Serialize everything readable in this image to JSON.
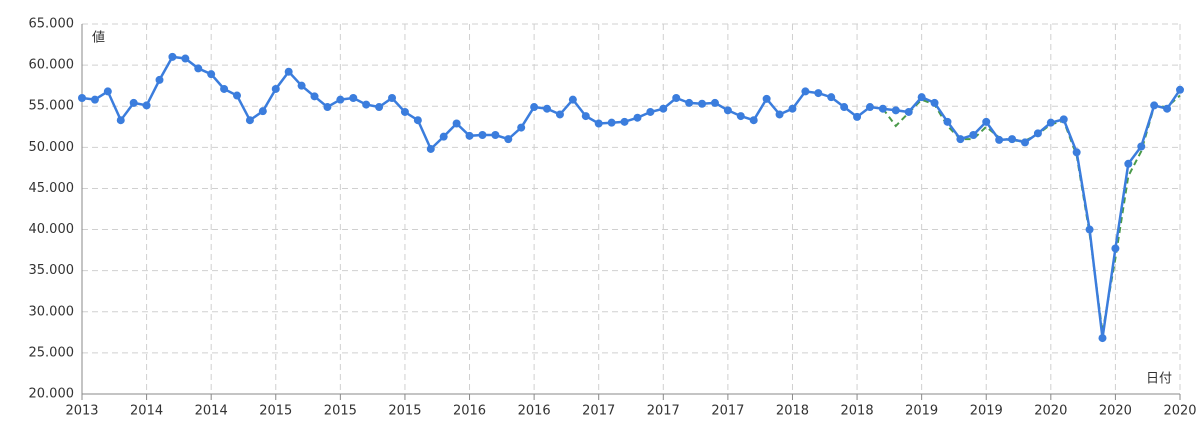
{
  "chart_data": {
    "type": "line",
    "y_axis_label": "値",
    "x_axis_label": "日付",
    "categories": [
      "2013",
      null,
      null,
      null,
      null,
      "2014",
      null,
      null,
      null,
      null,
      "2014",
      null,
      null,
      null,
      null,
      "2015",
      null,
      null,
      null,
      null,
      "2015",
      null,
      null,
      null,
      null,
      "2015",
      null,
      null,
      null,
      null,
      "2016",
      null,
      null,
      null,
      null,
      "2016",
      null,
      null,
      null,
      null,
      "2017",
      null,
      null,
      null,
      null,
      "2017",
      null,
      null,
      null,
      null,
      "2017",
      null,
      null,
      null,
      null,
      "2018",
      null,
      null,
      null,
      null,
      "2018",
      null,
      null,
      null,
      null,
      "2019",
      null,
      null,
      null,
      null,
      "2019",
      null,
      null,
      null,
      null,
      "2020",
      null,
      null,
      null,
      null,
      "2020",
      null,
      null,
      null,
      null,
      "2020"
    ],
    "series": [
      {
        "color": "#3b7ddd",
        "dashed": false,
        "markers": true,
        "values": [
          56.0,
          55.8,
          56.8,
          53.3,
          55.4,
          55.1,
          58.2,
          61.0,
          60.8,
          59.6,
          58.9,
          57.1,
          56.3,
          53.3,
          54.4,
          57.1,
          59.2,
          57.5,
          56.2,
          54.9,
          55.8,
          56.0,
          55.2,
          54.9,
          56.0,
          54.3,
          53.3,
          49.8,
          51.3,
          52.9,
          51.4,
          51.5,
          51.5,
          51.0,
          52.4,
          54.9,
          54.7,
          54.0,
          55.8,
          53.8,
          52.9,
          53.0,
          53.1,
          53.6,
          54.3,
          54.7,
          56.0,
          55.4,
          55.3,
          55.4,
          54.5,
          53.8,
          53.3,
          55.9,
          54.0,
          54.7,
          56.8,
          56.6,
          56.1,
          54.9,
          53.7,
          54.9,
          54.7,
          54.5,
          54.3,
          56.1,
          55.4,
          53.1,
          51.0,
          51.5,
          53.1,
          50.9,
          51.0,
          50.6,
          51.7,
          53.0,
          53.4,
          49.4,
          40.0,
          26.8,
          37.7,
          48.0,
          50.1,
          55.1,
          54.7,
          57.0
        ]
      },
      {
        "color": "#4a9a4a",
        "dashed": true,
        "markers": false,
        "values": [
          null,
          null,
          null,
          null,
          null,
          null,
          null,
          null,
          null,
          null,
          null,
          null,
          null,
          null,
          null,
          null,
          null,
          null,
          null,
          null,
          null,
          null,
          null,
          null,
          null,
          null,
          null,
          null,
          null,
          null,
          null,
          null,
          null,
          null,
          null,
          null,
          null,
          null,
          null,
          null,
          null,
          null,
          null,
          null,
          null,
          null,
          null,
          null,
          null,
          null,
          null,
          null,
          null,
          null,
          null,
          null,
          null,
          null,
          null,
          null,
          null,
          null,
          54.7,
          52.6,
          54.2,
          55.8,
          55.2,
          52.6,
          51.0,
          51.0,
          52.5,
          51.2,
          50.8,
          50.8,
          51.6,
          52.8,
          53.2,
          49.0,
          39.5,
          27.5,
          36.5,
          46.5,
          49.5,
          55.0,
          54.9,
          56.3
        ]
      }
    ],
    "ylim": [
      20,
      65
    ],
    "yticks": [
      {
        "value": 20,
        "label": "20.000"
      },
      {
        "value": 25,
        "label": "25.000"
      },
      {
        "value": 30,
        "label": "30.000"
      },
      {
        "value": 35,
        "label": "35.000"
      },
      {
        "value": 40,
        "label": "40.000"
      },
      {
        "value": 45,
        "label": "45.000"
      },
      {
        "value": 50,
        "label": "50.000"
      },
      {
        "value": 55,
        "label": "55.000"
      },
      {
        "value": 60,
        "label": "60.000"
      },
      {
        "value": 65,
        "label": "65.000"
      }
    ],
    "grid": true
  }
}
